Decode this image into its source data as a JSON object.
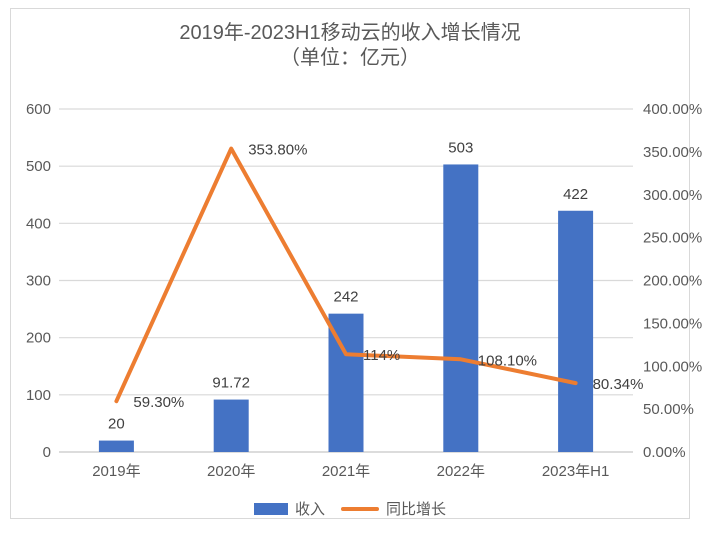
{
  "chart_data": {
    "type": "combo",
    "title": "2019年-2023H1移动云的收入增长情况",
    "subtitle": "（单位：亿元）",
    "categories": [
      "2019年",
      "2020年",
      "2021年",
      "2022年",
      "2023年H1"
    ],
    "series": [
      {
        "name": "收入",
        "type": "bar",
        "axis": "left",
        "color": "#4472C4",
        "values": [
          20,
          91.72,
          242,
          503,
          422
        ],
        "data_labels": [
          "20",
          "91.72",
          "242",
          "503",
          "422"
        ]
      },
      {
        "name": "同比增长",
        "type": "line",
        "axis": "right",
        "color": "#ED7D31",
        "values": [
          59.3,
          353.8,
          114,
          108.1,
          80.34
        ],
        "data_labels": [
          "59.30%",
          "353.80%",
          "114%",
          "108.10%",
          "80.34%"
        ]
      }
    ],
    "left_axis": {
      "min": 0,
      "max": 600,
      "tick_values": [
        0,
        100,
        200,
        300,
        400,
        500,
        600
      ],
      "tick_labels": [
        "0",
        "100",
        "200",
        "300",
        "400",
        "500",
        "600"
      ]
    },
    "right_axis": {
      "min": 0,
      "max": 400,
      "tick_values": [
        0,
        50,
        100,
        150,
        200,
        250,
        300,
        350,
        400
      ],
      "tick_labels": [
        "0.00%",
        "50.00%",
        "100.00%",
        "150.00%",
        "200.00%",
        "250.00%",
        "300.00%",
        "350.00%",
        "400.00%"
      ],
      "suffix": "%"
    },
    "grid": true,
    "legend_position": "bottom",
    "colors": {
      "grid": "#d9d9d9",
      "baseline": "#c8c8c8",
      "axis_text": "#595959",
      "data_label_text": "#404040",
      "frame_border": "#d9d9d9"
    }
  }
}
